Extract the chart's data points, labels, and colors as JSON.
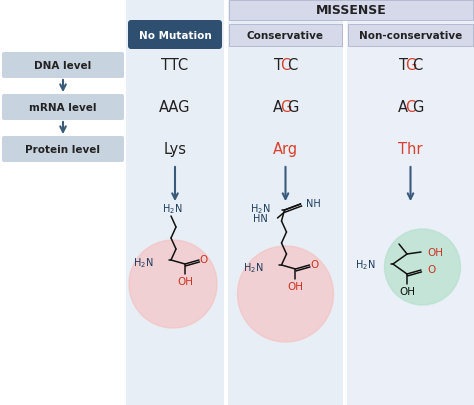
{
  "title": "MISSENSE",
  "col_no_mutation": "No Mutation",
  "col_conservative": "Conservative",
  "col_nonconservative": "Non-conservative",
  "left_labels": [
    "DNA level",
    "mRNA level",
    "Protein level"
  ],
  "no_mut_dna": "TTC",
  "no_mut_mrna": "AAG",
  "no_mut_protein": "Lys",
  "cons_dna": "TCC",
  "cons_mrna": "AGG",
  "cons_protein": "Arg",
  "noncons_dna": "TGC",
  "noncons_mrna": "ACG",
  "noncons_protein": "Thr",
  "dark_blue": "#2e4f70",
  "light_blue_box": "#c8d3e0",
  "col_bg_nomut": "#e8eef5",
  "col_bg_conservative": "#e8eef5",
  "col_bg_nonconservative": "#eaeff8",
  "missense_header_bg": "#d5d9ea",
  "red_color": "#d94030",
  "dark_text": "#222222",
  "mol_blue": "#1a3a5c",
  "mol_red": "#cc3322",
  "arrow_color": "#3a5a7c",
  "pink_circle": "#f5c0c0",
  "green_circle": "#b0dfc8",
  "background": "#ffffff",
  "col_bg_white": "#f5f7fc"
}
